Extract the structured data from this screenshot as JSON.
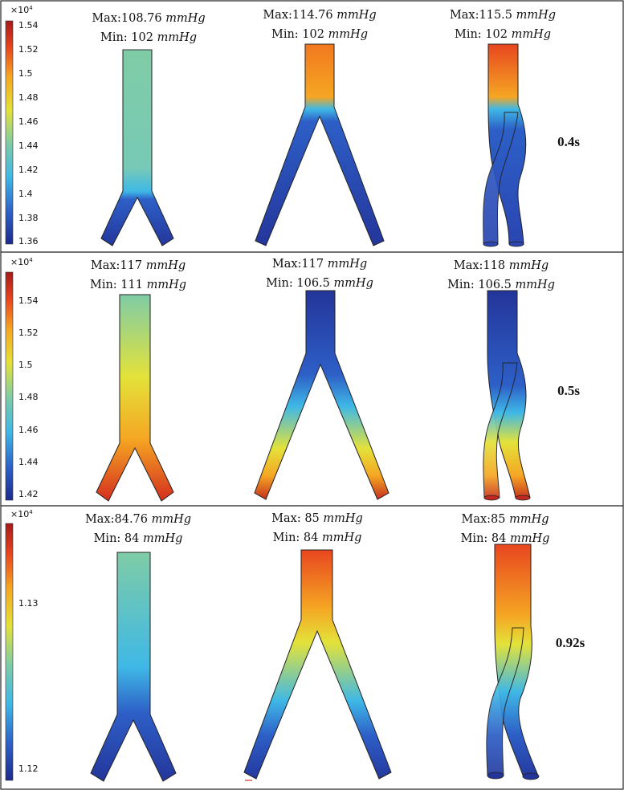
{
  "rows": [
    {
      "time": "0.4s",
      "colorbar": {
        "multiplier": "×10",
        "exponent": "4",
        "ticks": [
          "1.54",
          "1.52",
          "1.5",
          "1.48",
          "1.46",
          "1.44",
          "1.42",
          "1.4",
          "1.38",
          "1.36"
        ]
      },
      "panels": [
        {
          "max_label": "Max:108.76",
          "min_label": "Min: 102",
          "unit": "mmHg"
        },
        {
          "max_label": "Max:114.76",
          "min_label": "Min: 102",
          "unit": "mmHg"
        },
        {
          "max_label": "Max:115.5",
          "min_label": "Min: 102",
          "unit": "mmHg"
        }
      ]
    },
    {
      "time": "0.5s",
      "colorbar": {
        "multiplier": "×10",
        "exponent": "4",
        "ticks": [
          "1.54",
          "1.52",
          "1.5",
          "1.48",
          "1.46",
          "1.44",
          "1.42"
        ]
      },
      "panels": [
        {
          "max_label": "Max:117",
          "min_label": "Min: 111",
          "unit": "mmHg"
        },
        {
          "max_label": "Max:117",
          "min_label": "Min: 106.5",
          "unit": "mmHg"
        },
        {
          "max_label": "Max:118",
          "min_label": "Min: 106.5",
          "unit": "mmHg"
        }
      ]
    },
    {
      "time": "0.92s",
      "colorbar": {
        "multiplier": "×10",
        "exponent": "4",
        "ticks": [
          "1.13",
          "1.12"
        ]
      },
      "panels": [
        {
          "max_label": "Max:84.76",
          "min_label": "Min: 84",
          "unit": "mmHg"
        },
        {
          "max_label": "Max: 85",
          "min_label": "Min: 84",
          "unit": "mmHg"
        },
        {
          "max_label": "Max:85",
          "min_label": "Min: 84",
          "unit": "mmHg"
        }
      ]
    }
  ],
  "colormap": [
    "#1d2b8c",
    "#2d5fc7",
    "#3fb8e6",
    "#7fcca6",
    "#e3e23a",
    "#f5a623",
    "#e8461f",
    "#a61a1a"
  ]
}
